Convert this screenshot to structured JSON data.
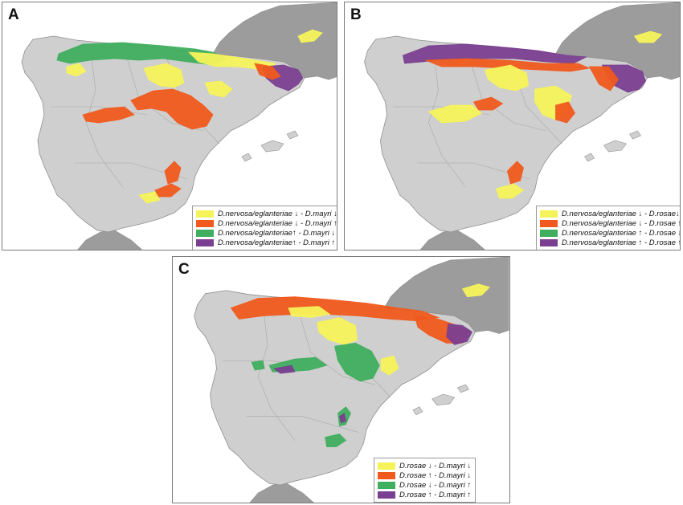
{
  "colors": {
    "yellow": "#f5f35a",
    "orange": "#f05a1e",
    "green": "#3fae5e",
    "purple": "#7a3f90",
    "land": "#cfcfcf",
    "sea": "#ffffff",
    "france": "#9c9c9c"
  },
  "panels": [
    {
      "id": "A",
      "letter": "A",
      "legend": [
        {
          "label": "D.nervosa/eglanteriae ↓ - D.mayri ↓",
          "color": "yellow"
        },
        {
          "label": "D.nervosa/eglanteriae ↓ - D.mayri ↑",
          "color": "orange"
        },
        {
          "label": "D.nervosa/eglanteriae↑ - D.mayri ↓",
          "color": "green"
        },
        {
          "label": "D.nervosa/eglanteriae↑ - D.mayri ↑",
          "color": "purple"
        }
      ]
    },
    {
      "id": "B",
      "letter": "B",
      "legend": [
        {
          "label": "D.nervosa/eglanteriae ↓ - D.rosae↓",
          "color": "yellow"
        },
        {
          "label": "D.nervosa/eglanteriae ↓ - D.rosae ↑",
          "color": "orange"
        },
        {
          "label": "D.nervosa/eglanteriae ↑ - D.rosae ↓",
          "color": "green"
        },
        {
          "label": "D.nervosa/eglanteriae ↑ - D.rosae ↑",
          "color": "purple"
        }
      ]
    },
    {
      "id": "C",
      "letter": "C",
      "legend": [
        {
          "label": "D.rosae ↓ - D.mayri ↓",
          "color": "yellow"
        },
        {
          "label": "D.rosae ↑ - D.mayri ↓",
          "color": "orange"
        },
        {
          "label": "D.rosae ↓ - D.mayri ↑",
          "color": "green"
        },
        {
          "label": "D.rosae ↑ - D.mayri ↑",
          "color": "purple"
        }
      ]
    }
  ]
}
